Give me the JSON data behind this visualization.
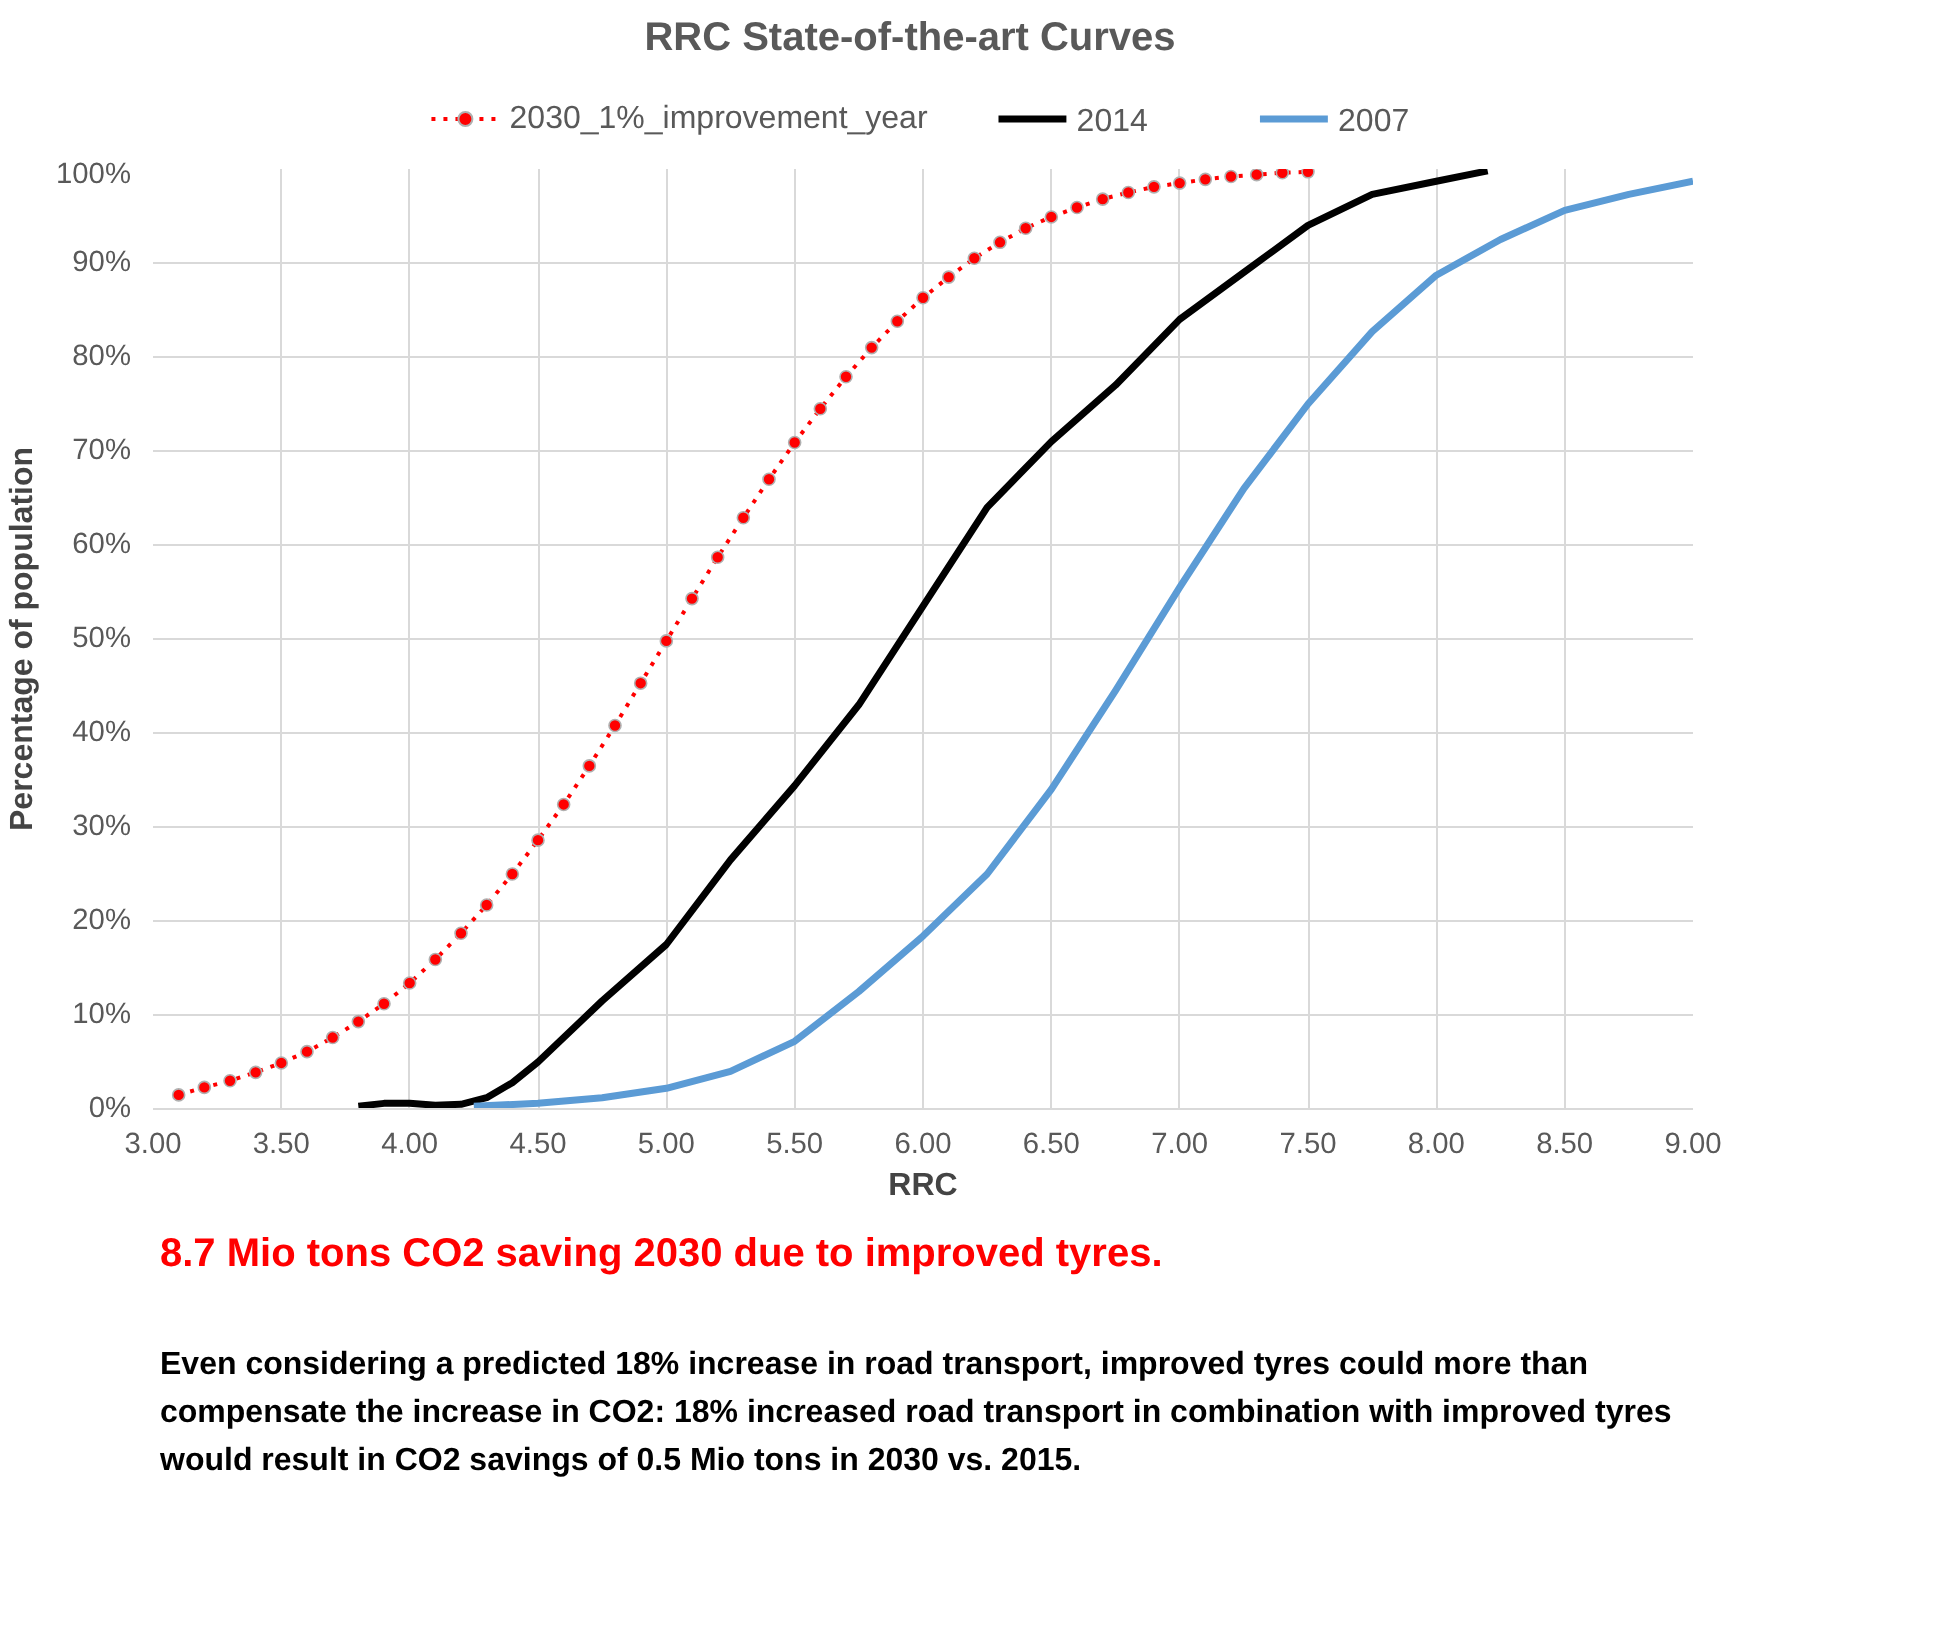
{
  "chart_data": {
    "type": "line",
    "title": "RRC State-of-the-art Curves",
    "xlabel": "RRC",
    "ylabel": "Percentage of population",
    "xlim": [
      3,
      9
    ],
    "xticks": [
      {
        "value": 3,
        "label": "3.00"
      },
      {
        "value": 3.5,
        "label": "3.50"
      },
      {
        "value": 4,
        "label": "4.00"
      },
      {
        "value": 4.5,
        "label": "4.50"
      },
      {
        "value": 5,
        "label": "5.00"
      },
      {
        "value": 5.5,
        "label": "5.50"
      },
      {
        "value": 6,
        "label": "6.00"
      },
      {
        "value": 6.5,
        "label": "6.50"
      },
      {
        "value": 7,
        "label": "7.00"
      },
      {
        "value": 7.5,
        "label": "7.50"
      },
      {
        "value": 8,
        "label": "8.00"
      },
      {
        "value": 8.5,
        "label": "8.50"
      },
      {
        "value": 9,
        "label": "9.00"
      }
    ],
    "ylim": [
      0,
      100
    ],
    "yticks": [
      {
        "value": 0,
        "label": "0%"
      },
      {
        "value": 10,
        "label": "10%"
      },
      {
        "value": 20,
        "label": "20%"
      },
      {
        "value": 30,
        "label": "30%"
      },
      {
        "value": 40,
        "label": "40%"
      },
      {
        "value": 50,
        "label": "50%"
      },
      {
        "value": 60,
        "label": "60%"
      },
      {
        "value": 70,
        "label": "70%"
      },
      {
        "value": 80,
        "label": "80%"
      },
      {
        "value": 90,
        "label": "90%"
      },
      {
        "value": 100,
        "label": "100%"
      }
    ],
    "grid": true,
    "legend": "top",
    "series": [
      {
        "name": "2030_1%_improvement_year",
        "color": "#ff0000",
        "marker": "circle",
        "line_style": "dotted",
        "x": [
          3.1,
          3.2,
          3.3,
          3.4,
          3.5,
          3.6,
          3.7,
          3.8,
          3.9,
          4.0,
          4.1,
          4.2,
          4.3,
          4.4,
          4.5,
          4.6,
          4.7,
          4.8,
          4.9,
          5.0,
          5.1,
          5.2,
          5.3,
          5.4,
          5.5,
          5.6,
          5.7,
          5.8,
          5.9,
          6.0,
          6.1,
          6.2,
          6.3,
          6.4,
          6.5,
          6.6,
          6.7,
          6.8,
          6.9,
          7.0,
          7.1,
          7.2,
          7.3,
          7.4,
          7.5
        ],
        "values": [
          1.5,
          2.3,
          3.0,
          3.9,
          4.9,
          6.1,
          7.6,
          9.3,
          11.2,
          13.4,
          15.9,
          18.7,
          21.7,
          25.0,
          28.6,
          32.4,
          36.5,
          40.8,
          45.3,
          49.8,
          54.3,
          58.7,
          62.9,
          67.0,
          70.9,
          74.5,
          77.9,
          81.0,
          83.8,
          86.3,
          88.5,
          90.5,
          92.2,
          93.7,
          94.9,
          95.9,
          96.8,
          97.5,
          98.1,
          98.5,
          98.9,
          99.2,
          99.4,
          99.6,
          99.7
        ]
      },
      {
        "name": "2014",
        "color": "#000000",
        "marker": "none",
        "line_style": "solid",
        "x": [
          3.8,
          3.9,
          4.0,
          4.1,
          4.2,
          4.3,
          4.4,
          4.5,
          4.75,
          5.0,
          5.25,
          5.5,
          5.75,
          6.0,
          6.25,
          6.5,
          6.75,
          7.0,
          7.25,
          7.5,
          7.75,
          8.0,
          8.2
        ],
        "values": [
          0.3,
          0.6,
          0.6,
          0.4,
          0.5,
          1.2,
          2.8,
          5.0,
          11.5,
          17.5,
          26.5,
          34.4,
          43.0,
          53.5,
          64.0,
          71.0,
          77.0,
          84.0,
          89.0,
          94.0,
          97.3,
          98.7,
          99.8
        ]
      },
      {
        "name": "2007",
        "color": "#5b9bd5",
        "marker": "none",
        "line_style": "solid",
        "x": [
          4.25,
          4.5,
          4.75,
          5.0,
          5.25,
          5.5,
          5.75,
          6.0,
          6.25,
          6.5,
          6.75,
          7.0,
          7.25,
          7.5,
          7.75,
          8.0,
          8.25,
          8.5,
          8.75,
          9.0
        ],
        "values": [
          0.3,
          0.6,
          1.2,
          2.2,
          4.0,
          7.2,
          12.5,
          18.4,
          25.0,
          34.0,
          44.5,
          55.5,
          66.0,
          75.0,
          82.7,
          88.7,
          92.5,
          95.6,
          97.3,
          98.7
        ]
      }
    ],
    "annotations": [
      "8.7 Mio tons CO2 saving 2030 due to improved tyres.",
      "Even considering a predicted 18% increase in road transport, improved tyres could more than compensate the increase in CO2:  18% increased road transport in combination with improved tyres would result in CO2 savings of 0.5 Mio tons in 2030 vs. 2015."
    ]
  }
}
